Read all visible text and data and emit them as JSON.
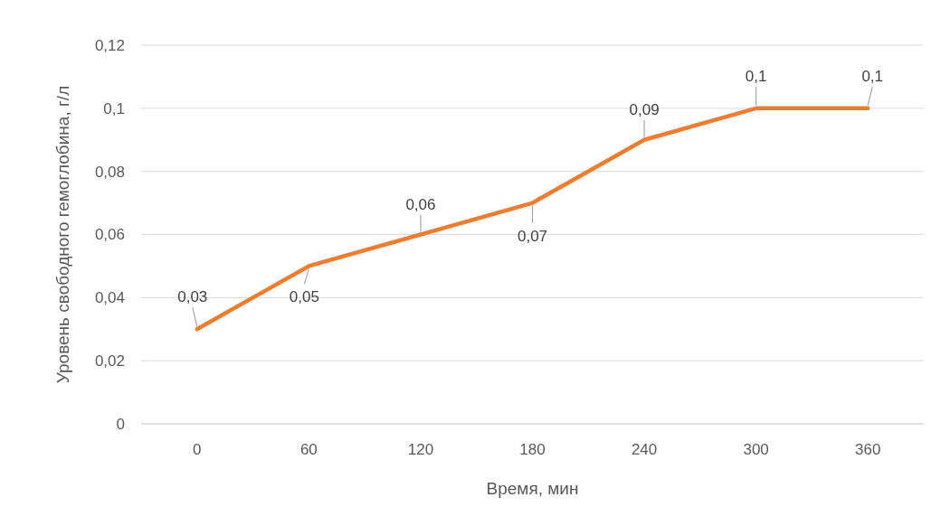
{
  "chart_data": {
    "type": "line",
    "xlabel": "Время, мин",
    "ylabel": "Уровень свободного гемоглобина, г/л",
    "categories": [
      "0",
      "60",
      "120",
      "180",
      "240",
      "300",
      "360"
    ],
    "series": [
      {
        "color": "#ed7d31",
        "values": [
          0.03,
          0.05,
          0.06,
          0.07,
          0.09,
          0.1,
          0.1
        ],
        "value_labels": [
          "0,03",
          "0,05",
          "0,06",
          "0,07",
          "0,09",
          "0,1",
          "0,1"
        ]
      }
    ],
    "ylim": [
      0,
      0.12
    ],
    "yticks": [
      {
        "value": 0,
        "label": "0"
      },
      {
        "value": 0.02,
        "label": "0,02"
      },
      {
        "value": 0.04,
        "label": "0,04"
      },
      {
        "value": 0.06,
        "label": "0,06"
      },
      {
        "value": 0.08,
        "label": "0,08"
      },
      {
        "value": 0.1,
        "label": "0,1"
      },
      {
        "value": 0.12,
        "label": "0,12"
      }
    ],
    "grid": "y",
    "marker": "none",
    "line_style": "solid"
  }
}
